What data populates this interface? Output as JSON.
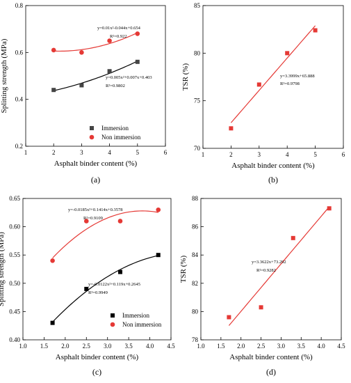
{
  "chart_data": [
    {
      "type": "scatter",
      "panel_label": "(a)",
      "xlabel": "Asphalt binder content (%)",
      "ylabel": "Splitting strength (MPa)",
      "xlim": [
        1,
        6
      ],
      "ylim": [
        0.2,
        0.8
      ],
      "xticks": [
        "1",
        "2",
        "3",
        "4",
        "5",
        "6"
      ],
      "yticks": [
        "0.2",
        "0.4",
        "0.6",
        "0.8"
      ],
      "legend": "bottom-right",
      "series": [
        {
          "name": "Immersion",
          "marker": "square",
          "color": "#444444",
          "x": [
            2,
            3,
            4,
            5
          ],
          "values": [
            0.44,
            0.46,
            0.52,
            0.56
          ],
          "fit": [
            0.005,
            0.007,
            0.403
          ],
          "equation": "y=0.005x²+0.007x+0.403",
          "r2": "R²=0.9802"
        },
        {
          "name": "Non immersion",
          "marker": "circle",
          "color": "#e53935",
          "x": [
            2,
            3,
            4,
            5
          ],
          "values": [
            0.61,
            0.6,
            0.65,
            0.68
          ],
          "fit": [
            0.01,
            -0.044,
            0.654
          ],
          "equation": "y=0.01x²-0.044x+0.654",
          "r2": "R²=0.922"
        }
      ]
    },
    {
      "type": "scatter",
      "panel_label": "(b)",
      "xlabel": "Asphalt binder content (%)",
      "ylabel": "TSR (%)",
      "xlim": [
        1,
        6
      ],
      "ylim": [
        70,
        85
      ],
      "xticks": [
        "1",
        "2",
        "3",
        "4",
        "5",
        "6"
      ],
      "yticks": [
        "70",
        "75",
        "80",
        "85"
      ],
      "series": [
        {
          "marker": "square",
          "color": "#e53935",
          "x": [
            2,
            3,
            4,
            5
          ],
          "values": [
            72.1,
            76.7,
            80.0,
            82.4
          ],
          "fit": [
            0,
            3.3999,
            65.888
          ],
          "equation": "y=3.3999x+65.888",
          "r2": "R²=0.9798"
        }
      ]
    },
    {
      "type": "scatter",
      "panel_label": "(c)",
      "xlabel": "Asphalt binder content (%)",
      "ylabel": "Splitting strength (MPa)",
      "xlim": [
        1.0,
        4.5
      ],
      "ylim": [
        0.4,
        0.65
      ],
      "xticks": [
        "1.0",
        "1.5",
        "2.0",
        "2.5",
        "3.0",
        "3.5",
        "4.0",
        "4.5"
      ],
      "yticks": [
        "0.40",
        "0.45",
        "0.50",
        "0.55",
        "0.60",
        "0.65"
      ],
      "legend": "bottom-right",
      "series": [
        {
          "name": "Immersion",
          "marker": "square",
          "color": "#000000",
          "x": [
            1.7,
            2.5,
            3.3,
            4.2
          ],
          "values": [
            0.43,
            0.49,
            0.52,
            0.55
          ],
          "fit": [
            -0.0122,
            0.119,
            0.2645
          ],
          "equation": "y=-0.0122x²+0.119x+0.2645",
          "r2": "R²=0.9949"
        },
        {
          "name": "Non immersion",
          "marker": "circle",
          "color": "#e53935",
          "x": [
            1.7,
            2.5,
            3.3,
            4.2
          ],
          "values": [
            0.54,
            0.61,
            0.61,
            0.63
          ],
          "fit": [
            -0.0185,
            0.1414,
            0.3578
          ],
          "equation": "y=-0.0185x²+0.1414x+0.3578",
          "r2": "R²=0.9109"
        }
      ]
    },
    {
      "type": "scatter",
      "panel_label": "(d)",
      "xlabel": "Asphalt binder content (%)",
      "ylabel": "TSR (%)",
      "xlim": [
        1.0,
        4.5
      ],
      "ylim": [
        78,
        88
      ],
      "xticks": [
        "1.0",
        "1.5",
        "2.0",
        "2.5",
        "3.0",
        "3.5",
        "4.0",
        "4.5"
      ],
      "yticks": [
        "78",
        "80",
        "82",
        "84",
        "86",
        "88"
      ],
      "series": [
        {
          "marker": "square",
          "color": "#e53935",
          "x": [
            1.7,
            2.5,
            3.3,
            4.2
          ],
          "values": [
            79.6,
            80.3,
            85.2,
            87.3
          ],
          "fit": [
            0,
            3.3622,
            73.292
          ],
          "equation": "y=3.3622x+73.292",
          "r2": "R²=0.9282"
        }
      ]
    }
  ]
}
